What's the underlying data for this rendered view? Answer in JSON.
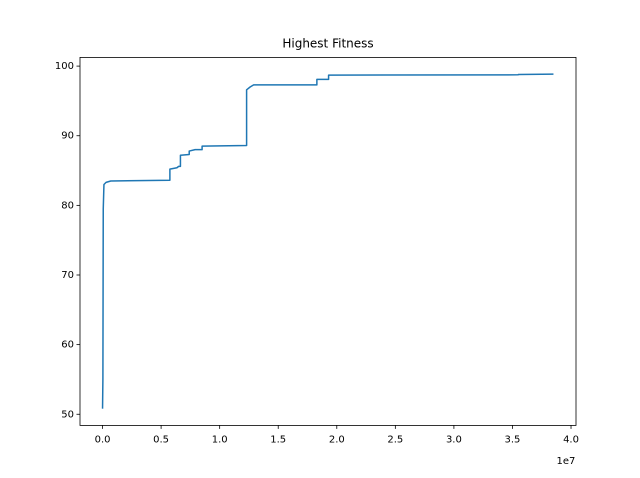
{
  "chart_data": {
    "type": "line",
    "title": "Highest Fitness",
    "x": [
      0,
      30000,
      60000,
      120000,
      300000,
      700000,
      5750000,
      5750000,
      6350000,
      6500000,
      6650000,
      6650000,
      7400000,
      7400000,
      7900000,
      8500000,
      8500000,
      12300000,
      12300000,
      12600000,
      12900000,
      18300000,
      18300000,
      19300000,
      19300000,
      35500000,
      35500000,
      38500000
    ],
    "series": [
      {
        "color": "#1f77b4",
        "values": [
          50.8,
          55,
          79.5,
          83.0,
          83.3,
          83.5,
          83.6,
          85.2,
          85.4,
          85.6,
          85.6,
          87.2,
          87.3,
          87.8,
          88.0,
          88.0,
          88.5,
          88.6,
          96.6,
          97.0,
          97.3,
          97.3,
          98.1,
          98.1,
          98.7,
          98.75,
          98.8,
          98.85
        ]
      }
    ],
    "xlim": [
      -1925000,
      40425000
    ],
    "xticks": [
      {
        "value": 0,
        "label": "0.0"
      },
      {
        "value": 5000000,
        "label": "0.5"
      },
      {
        "value": 10000000,
        "label": "1.0"
      },
      {
        "value": 15000000,
        "label": "1.5"
      },
      {
        "value": 20000000,
        "label": "2.0"
      },
      {
        "value": 25000000,
        "label": "2.5"
      },
      {
        "value": 30000000,
        "label": "3.0"
      },
      {
        "value": 35000000,
        "label": "3.5"
      },
      {
        "value": 40000000,
        "label": "4.0"
      }
    ],
    "x_offset_label": "1e7",
    "ylim": [
      48.4,
      101.25
    ],
    "yticks": [
      50,
      60,
      70,
      80,
      90,
      100
    ],
    "grid": false
  }
}
